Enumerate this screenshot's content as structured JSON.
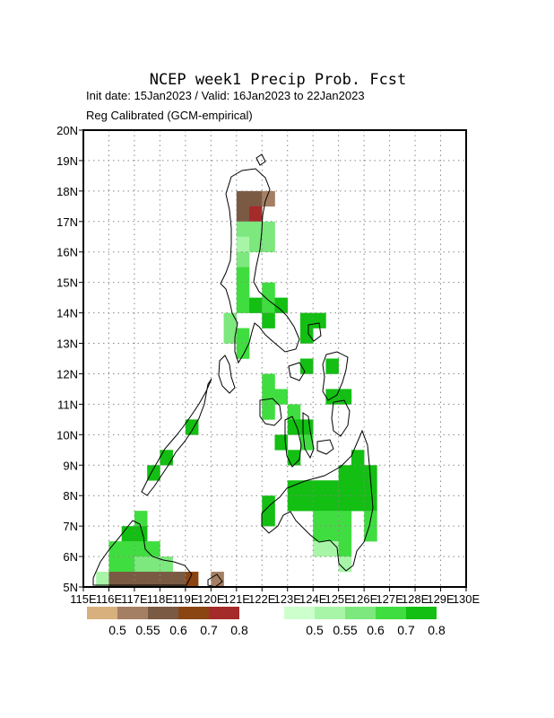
{
  "title": "NCEP week1 Precip Prob. Fcst",
  "subtitle1": "Init date: 15Jan2023 / Valid: 16Jan2023 to 22Jan2023",
  "subtitle2": "Reg Calibrated (GCM-empirical)",
  "map": {
    "lon_range": [
      115,
      130
    ],
    "lat_range": [
      5,
      20
    ],
    "grid": true,
    "lat_ticks": [
      "5N",
      "6N",
      "7N",
      "8N",
      "9N",
      "10N",
      "11N",
      "12N",
      "13N",
      "14N",
      "15N",
      "16N",
      "17N",
      "18N",
      "19N",
      "20N"
    ],
    "lon_ticks": [
      "115E",
      "116E",
      "117E",
      "118E",
      "119E",
      "120E",
      "121E",
      "122E",
      "123E",
      "124E",
      "125E",
      "126E",
      "127E",
      "128E",
      "129E",
      "130E"
    ]
  },
  "legend_dry": {
    "colors": [
      "#d8b07e",
      "#a57f63",
      "#7a5a43",
      "#8b4513",
      "#a52a2a"
    ],
    "labels": [
      "0.5",
      "0.55",
      "0.6",
      "0.7",
      "0.8"
    ]
  },
  "legend_wet": {
    "colors": [
      "#ccffcc",
      "#a8f5a8",
      "#7de87d",
      "#40dd40",
      "#12bf12"
    ],
    "labels": [
      "0.5",
      "0.55",
      "0.6",
      "0.7",
      "0.8"
    ]
  },
  "cells": [
    {
      "lon": 121,
      "lat": 17.5,
      "c": 2
    },
    {
      "lon": 121.5,
      "lat": 17.5,
      "c": 2
    },
    {
      "lon": 122,
      "lat": 17.5,
      "c": 1
    },
    {
      "lon": 121,
      "lat": 17,
      "c": 2
    },
    {
      "lon": 121.5,
      "lat": 17,
      "c": 4
    },
    {
      "lon": 121.5,
      "lat": 16.5,
      "c": 7
    },
    {
      "lon": 121,
      "lat": 16.5,
      "c": 7
    },
    {
      "lon": 122,
      "lat": 16.5,
      "c": 7
    },
    {
      "lon": 121,
      "lat": 16,
      "c": 6
    },
    {
      "lon": 121.5,
      "lat": 16,
      "c": 7
    },
    {
      "lon": 122,
      "lat": 16,
      "c": 7
    },
    {
      "lon": 121,
      "lat": 15.5,
      "c": 7
    },
    {
      "lon": 121,
      "lat": 15,
      "c": 8
    },
    {
      "lon": 121,
      "lat": 14.5,
      "c": 8
    },
    {
      "lon": 122,
      "lat": 14.5,
      "c": 8
    },
    {
      "lon": 121,
      "lat": 14,
      "c": 8
    },
    {
      "lon": 121.5,
      "lat": 14,
      "c": 9
    },
    {
      "lon": 122,
      "lat": 14,
      "c": 8
    },
    {
      "lon": 122.5,
      "lat": 14,
      "c": 9
    },
    {
      "lon": 120.5,
      "lat": 13.5,
      "c": 7
    },
    {
      "lon": 122,
      "lat": 13.5,
      "c": 9
    },
    {
      "lon": 123.5,
      "lat": 13.5,
      "c": 9
    },
    {
      "lon": 124,
      "lat": 13.5,
      "c": 9
    },
    {
      "lon": 120.5,
      "lat": 13,
      "c": 7
    },
    {
      "lon": 121,
      "lat": 13,
      "c": 8
    },
    {
      "lon": 123.5,
      "lat": 13,
      "c": 9
    },
    {
      "lon": 121,
      "lat": 12.5,
      "c": 8
    },
    {
      "lon": 123.5,
      "lat": 12,
      "c": 9
    },
    {
      "lon": 124.5,
      "lat": 12,
      "c": 9
    },
    {
      "lon": 122,
      "lat": 11.5,
      "c": 8
    },
    {
      "lon": 122,
      "lat": 11,
      "c": 8
    },
    {
      "lon": 122.5,
      "lat": 11,
      "c": 8
    },
    {
      "lon": 124.5,
      "lat": 11,
      "c": 9
    },
    {
      "lon": 125,
      "lat": 11,
      "c": 9
    },
    {
      "lon": 122,
      "lat": 10.5,
      "c": 8
    },
    {
      "lon": 123,
      "lat": 10.5,
      "c": 8
    },
    {
      "lon": 123,
      "lat": 10,
      "c": 9
    },
    {
      "lon": 123.5,
      "lat": 10,
      "c": 9
    },
    {
      "lon": 119,
      "lat": 10,
      "c": 9
    },
    {
      "lon": 122.5,
      "lat": 9.5,
      "c": 9
    },
    {
      "lon": 123.5,
      "lat": 9.5,
      "c": 8
    },
    {
      "lon": 118,
      "lat": 9,
      "c": 9
    },
    {
      "lon": 123,
      "lat": 9,
      "c": 9
    },
    {
      "lon": 125.5,
      "lat": 9,
      "c": 9
    },
    {
      "lon": 117.5,
      "lat": 8.5,
      "c": 9
    },
    {
      "lon": 125,
      "lat": 8.5,
      "c": 9
    },
    {
      "lon": 125.5,
      "lat": 8.5,
      "c": 9
    },
    {
      "lon": 126,
      "lat": 8.5,
      "c": 9
    },
    {
      "lon": 123,
      "lat": 8,
      "c": 9
    },
    {
      "lon": 123.5,
      "lat": 8,
      "c": 9
    },
    {
      "lon": 124,
      "lat": 8,
      "c": 9
    },
    {
      "lon": 124.5,
      "lat": 8,
      "c": 9
    },
    {
      "lon": 125,
      "lat": 8,
      "c": 9
    },
    {
      "lon": 125.5,
      "lat": 8,
      "c": 9
    },
    {
      "lon": 126,
      "lat": 8,
      "c": 9
    },
    {
      "lon": 122,
      "lat": 7.5,
      "c": 9
    },
    {
      "lon": 123,
      "lat": 7.5,
      "c": 9
    },
    {
      "lon": 123.5,
      "lat": 7.5,
      "c": 9
    },
    {
      "lon": 124,
      "lat": 7.5,
      "c": 9
    },
    {
      "lon": 124.5,
      "lat": 7.5,
      "c": 9
    },
    {
      "lon": 125,
      "lat": 7.5,
      "c": 9
    },
    {
      "lon": 125.5,
      "lat": 7.5,
      "c": 9
    },
    {
      "lon": 126,
      "lat": 7.5,
      "c": 9
    },
    {
      "lon": 122,
      "lat": 7,
      "c": 9
    },
    {
      "lon": 124,
      "lat": 7,
      "c": 8
    },
    {
      "lon": 124.5,
      "lat": 7,
      "c": 8
    },
    {
      "lon": 125,
      "lat": 7,
      "c": 8
    },
    {
      "lon": 126,
      "lat": 7,
      "c": 8
    },
    {
      "lon": 117,
      "lat": 7,
      "c": 8
    },
    {
      "lon": 116.5,
      "lat": 6.5,
      "c": 9
    },
    {
      "lon": 117,
      "lat": 6.5,
      "c": 9
    },
    {
      "lon": 124,
      "lat": 6.5,
      "c": 8
    },
    {
      "lon": 124.5,
      "lat": 6.5,
      "c": 8
    },
    {
      "lon": 125,
      "lat": 6.5,
      "c": 8
    },
    {
      "lon": 126,
      "lat": 6.5,
      "c": 8
    },
    {
      "lon": 116,
      "lat": 6,
      "c": 8
    },
    {
      "lon": 116.5,
      "lat": 6,
      "c": 8
    },
    {
      "lon": 117,
      "lat": 6,
      "c": 8
    },
    {
      "lon": 117.5,
      "lat": 6,
      "c": 8
    },
    {
      "lon": 124,
      "lat": 6,
      "c": 6
    },
    {
      "lon": 124.5,
      "lat": 6,
      "c": 6
    },
    {
      "lon": 125,
      "lat": 6,
      "c": 8
    },
    {
      "lon": 116,
      "lat": 5.5,
      "c": 8
    },
    {
      "lon": 116.5,
      "lat": 5.5,
      "c": 8
    },
    {
      "lon": 117,
      "lat": 5.5,
      "c": 7
    },
    {
      "lon": 117.5,
      "lat": 5.5,
      "c": 7
    },
    {
      "lon": 118,
      "lat": 5.5,
      "c": 7
    },
    {
      "lon": 125,
      "lat": 5.5,
      "c": 6
    },
    {
      "lon": 115.5,
      "lat": 5,
      "c": 6
    },
    {
      "lon": 116,
      "lat": 5,
      "c": 2
    },
    {
      "lon": 116.5,
      "lat": 5,
      "c": 2
    },
    {
      "lon": 117,
      "lat": 5,
      "c": 2
    },
    {
      "lon": 117.5,
      "lat": 5,
      "c": 2
    },
    {
      "lon": 118,
      "lat": 5,
      "c": 2
    },
    {
      "lon": 118.5,
      "lat": 5,
      "c": 2
    },
    {
      "lon": 119,
      "lat": 5,
      "c": 3
    },
    {
      "lon": 120,
      "lat": 5,
      "c": 1
    }
  ]
}
